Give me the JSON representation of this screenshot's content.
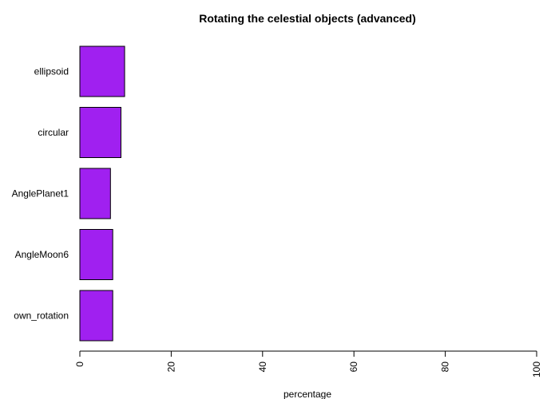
{
  "chart_data": {
    "type": "bar",
    "orientation": "horizontal",
    "title": "Rotating the celestial objects (advanced)",
    "xlabel": "percentage",
    "ylabel": "",
    "categories": [
      "ellipsoid",
      "circular",
      "AnglePlanet1",
      "AngleMoon6",
      "own_rotation"
    ],
    "values": [
      9.8,
      9.0,
      6.7,
      7.2,
      7.2
    ],
    "xlim": [
      0,
      100
    ],
    "xticks": [
      0,
      20,
      40,
      60,
      80,
      100
    ],
    "xtick_labels": [
      "0",
      "20",
      "40",
      "60",
      "80",
      "100"
    ],
    "bar_color": "#A020F0",
    "bar_border_color": "#000000",
    "grid": false,
    "legend": "none"
  }
}
